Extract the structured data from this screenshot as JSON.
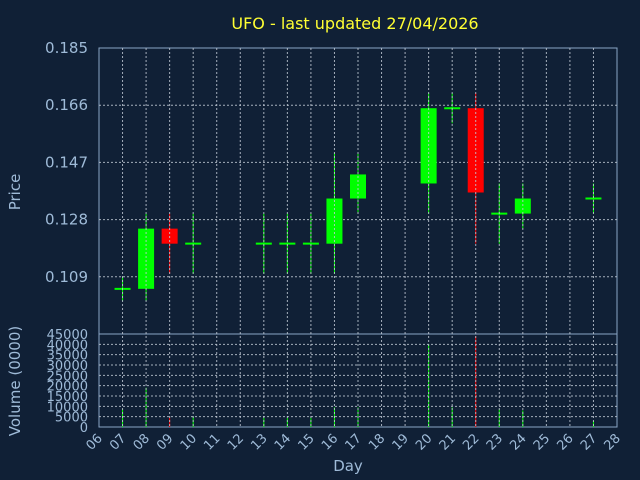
{
  "chart_data": [
    {
      "type": "candlestick",
      "title": "UFO - last updated 27/04/2026",
      "ylabel": "Price",
      "ylim": [
        0.09,
        0.185
      ],
      "yticks": [
        "0.109",
        "0.128",
        "0.147",
        "0.166",
        "0.185"
      ],
      "ytick_values": [
        0.109,
        0.128,
        0.147,
        0.166,
        0.185
      ],
      "x_range": [
        6,
        28
      ],
      "xticks": [
        "06",
        "07",
        "08",
        "09",
        "10",
        "11",
        "12",
        "13",
        "14",
        "15",
        "16",
        "17",
        "18",
        "19",
        "20",
        "21",
        "22",
        "23",
        "24",
        "25",
        "26",
        "27",
        "28"
      ],
      "grid": true,
      "colors": {
        "up": "#00ff00",
        "down": "#ff0000",
        "background": "#102036",
        "grid": "#c0c8d4",
        "axis": "#8aa6c6",
        "title": "#ffff33"
      },
      "candles": [
        {
          "day": 7,
          "open": 0.105,
          "high": 0.109,
          "low": 0.101,
          "close": 0.105
        },
        {
          "day": 8,
          "open": 0.105,
          "high": 0.13,
          "low": 0.101,
          "close": 0.125
        },
        {
          "day": 9,
          "open": 0.125,
          "high": 0.13,
          "low": 0.11,
          "close": 0.12
        },
        {
          "day": 10,
          "open": 0.12,
          "high": 0.13,
          "low": 0.11,
          "close": 0.12
        },
        {
          "day": 13,
          "open": 0.12,
          "high": 0.13,
          "low": 0.11,
          "close": 0.12
        },
        {
          "day": 14,
          "open": 0.12,
          "high": 0.13,
          "low": 0.11,
          "close": 0.12
        },
        {
          "day": 15,
          "open": 0.12,
          "high": 0.13,
          "low": 0.11,
          "close": 0.12
        },
        {
          "day": 16,
          "open": 0.12,
          "high": 0.15,
          "low": 0.11,
          "close": 0.135
        },
        {
          "day": 17,
          "open": 0.135,
          "high": 0.15,
          "low": 0.13,
          "close": 0.143
        },
        {
          "day": 20,
          "open": 0.14,
          "high": 0.17,
          "low": 0.13,
          "close": 0.165
        },
        {
          "day": 21,
          "open": 0.165,
          "high": 0.17,
          "low": 0.16,
          "close": 0.165
        },
        {
          "day": 22,
          "open": 0.165,
          "high": 0.17,
          "low": 0.12,
          "close": 0.137
        },
        {
          "day": 23,
          "open": 0.13,
          "high": 0.14,
          "low": 0.12,
          "close": 0.13
        },
        {
          "day": 24,
          "open": 0.13,
          "high": 0.14,
          "low": 0.125,
          "close": 0.135
        },
        {
          "day": 27,
          "open": 0.135,
          "high": 0.14,
          "low": 0.13,
          "close": 0.135
        }
      ]
    },
    {
      "type": "bar",
      "ylabel": "Volume (0000)",
      "xlabel": "Day",
      "ylim": [
        0,
        45000
      ],
      "yticks": [
        "0",
        "5000",
        "10000",
        "15000",
        "20000",
        "25000",
        "30000",
        "35000",
        "40000",
        "45000"
      ],
      "ytick_values": [
        0,
        5000,
        10000,
        15000,
        20000,
        25000,
        30000,
        35000,
        40000,
        45000
      ],
      "grid": true,
      "bars": [
        {
          "day": 7,
          "value": 8500,
          "color": "#00ff00"
        },
        {
          "day": 8,
          "value": 19000,
          "color": "#00ff00"
        },
        {
          "day": 9,
          "value": 4500,
          "color": "#ff0000"
        },
        {
          "day": 10,
          "value": 5000,
          "color": "#00ff00"
        },
        {
          "day": 13,
          "value": 4500,
          "color": "#00ff00"
        },
        {
          "day": 14,
          "value": 4500,
          "color": "#00ff00"
        },
        {
          "day": 15,
          "value": 4500,
          "color": "#00ff00"
        },
        {
          "day": 16,
          "value": 9500,
          "color": "#00ff00"
        },
        {
          "day": 17,
          "value": 9500,
          "color": "#00ff00"
        },
        {
          "day": 20,
          "value": 40000,
          "color": "#00ff00"
        },
        {
          "day": 21,
          "value": 9500,
          "color": "#00ff00"
        },
        {
          "day": 22,
          "value": 44000,
          "color": "#ff0000"
        },
        {
          "day": 23,
          "value": 8500,
          "color": "#00ff00"
        },
        {
          "day": 24,
          "value": 8000,
          "color": "#00ff00"
        },
        {
          "day": 27,
          "value": 3000,
          "color": "#00ff00"
        }
      ]
    }
  ]
}
